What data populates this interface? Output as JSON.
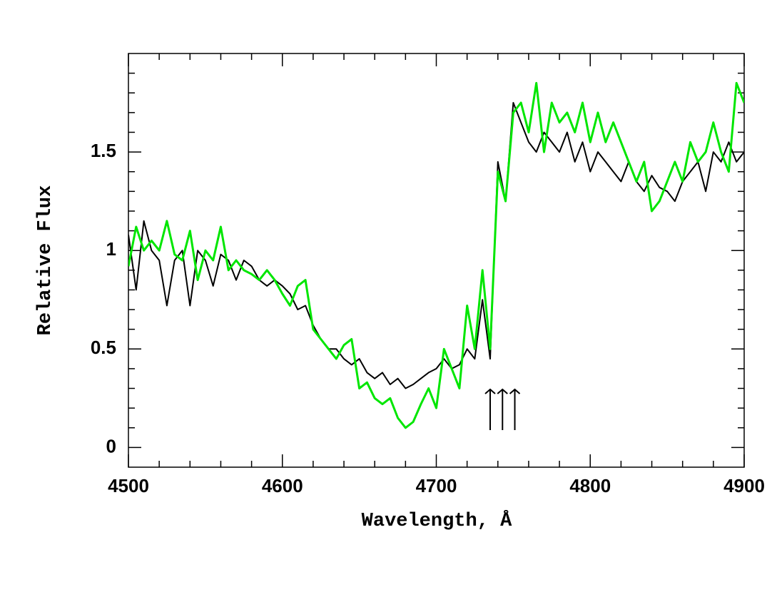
{
  "chart_data": {
    "type": "line",
    "xlabel": "Wavelength, Å",
    "ylabel": "Relative Flux",
    "x": [
      4500,
      4505,
      4510,
      4515,
      4520,
      4525,
      4530,
      4535,
      4540,
      4545,
      4550,
      4555,
      4560,
      4565,
      4570,
      4575,
      4580,
      4585,
      4590,
      4595,
      4600,
      4605,
      4610,
      4615,
      4620,
      4625,
      4630,
      4635,
      4640,
      4645,
      4650,
      4655,
      4660,
      4665,
      4670,
      4675,
      4680,
      4685,
      4690,
      4695,
      4700,
      4705,
      4710,
      4715,
      4720,
      4725,
      4730,
      4735,
      4740,
      4745,
      4750,
      4755,
      4760,
      4765,
      4770,
      4775,
      4780,
      4785,
      4790,
      4795,
      4800,
      4805,
      4810,
      4815,
      4820,
      4825,
      4830,
      4835,
      4840,
      4845,
      4850,
      4855,
      4860,
      4865,
      4870,
      4875,
      4880,
      4885,
      4890,
      4895,
      4900
    ],
    "series": [
      {
        "color": "#000000",
        "values": [
          1.08,
          0.8,
          1.15,
          1.0,
          0.95,
          0.72,
          0.95,
          1.0,
          0.72,
          1.0,
          0.95,
          0.82,
          0.98,
          0.95,
          0.85,
          0.95,
          0.92,
          0.85,
          0.82,
          0.85,
          0.82,
          0.78,
          0.7,
          0.72,
          0.62,
          0.55,
          0.5,
          0.5,
          0.45,
          0.42,
          0.45,
          0.38,
          0.35,
          0.38,
          0.32,
          0.35,
          0.3,
          0.32,
          0.35,
          0.38,
          0.4,
          0.45,
          0.4,
          0.42,
          0.5,
          0.45,
          0.75,
          0.45,
          1.45,
          1.25,
          1.75,
          1.65,
          1.55,
          1.5,
          1.6,
          1.55,
          1.5,
          1.6,
          1.45,
          1.55,
          1.4,
          1.5,
          1.45,
          1.4,
          1.35,
          1.45,
          1.35,
          1.3,
          1.38,
          1.32,
          1.3,
          1.25,
          1.35,
          1.4,
          1.45,
          1.3,
          1.5,
          1.45,
          1.55,
          1.45,
          1.5
        ]
      },
      {
        "color": "#00e600",
        "values": [
          0.92,
          1.12,
          1.0,
          1.05,
          1.0,
          1.15,
          0.98,
          0.95,
          1.1,
          0.85,
          1.0,
          0.95,
          1.12,
          0.9,
          0.95,
          0.9,
          0.88,
          0.85,
          0.9,
          0.85,
          0.78,
          0.72,
          0.82,
          0.85,
          0.6,
          0.55,
          0.5,
          0.45,
          0.52,
          0.55,
          0.3,
          0.33,
          0.25,
          0.22,
          0.25,
          0.15,
          0.1,
          0.13,
          0.22,
          0.3,
          0.2,
          0.5,
          0.4,
          0.3,
          0.72,
          0.5,
          0.9,
          0.5,
          1.4,
          1.25,
          1.7,
          1.75,
          1.6,
          1.85,
          1.5,
          1.75,
          1.65,
          1.7,
          1.6,
          1.75,
          1.55,
          1.7,
          1.55,
          1.65,
          1.55,
          1.45,
          1.35,
          1.45,
          1.2,
          1.25,
          1.35,
          1.45,
          1.35,
          1.55,
          1.45,
          1.5,
          1.65,
          1.5,
          1.4,
          1.85,
          1.75
        ]
      }
    ],
    "markers": [
      4735,
      4743,
      4751
    ],
    "xlim": [
      4500,
      4900
    ],
    "ylim": [
      -0.1,
      2.0
    ],
    "xticks": [
      4500,
      4600,
      4700,
      4800,
      4900
    ],
    "yticks": [
      0,
      0.5,
      1,
      1.5
    ],
    "xticks_minor": [
      4520,
      4540,
      4560,
      4580,
      4620,
      4640,
      4660,
      4680,
      4720,
      4740,
      4760,
      4780,
      4820,
      4840,
      4860,
      4880
    ],
    "yticks_minor": [
      0.1,
      0.2,
      0.3,
      0.4,
      0.6,
      0.7,
      0.8,
      0.9,
      1.1,
      1.2,
      1.3,
      1.4,
      1.6,
      1.7,
      1.8,
      1.9
    ],
    "grid": false
  }
}
